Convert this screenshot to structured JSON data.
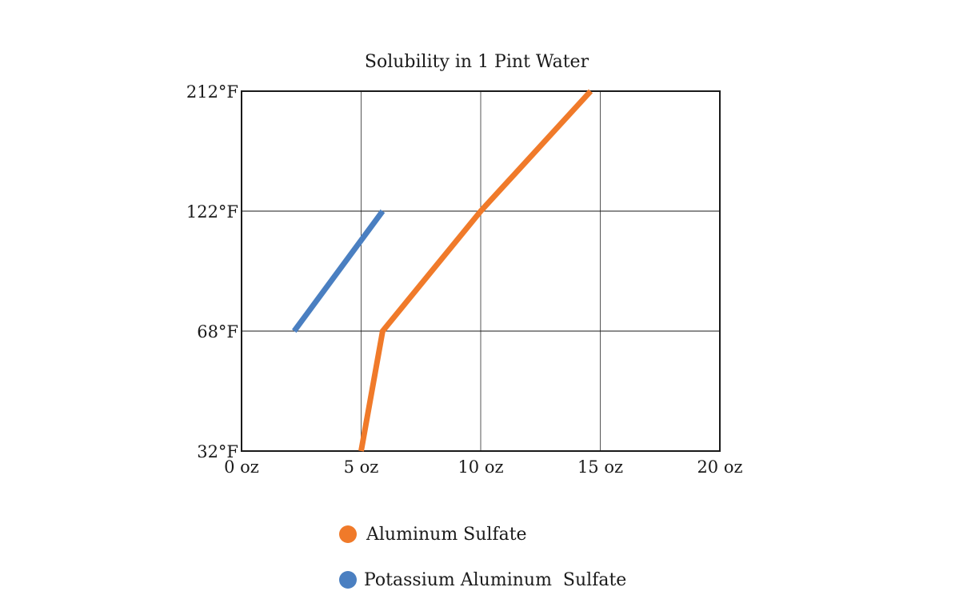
{
  "chart_data": {
    "type": "line",
    "title": "Solubility in 1 Pint Water",
    "xlabel": "",
    "ylabel": "",
    "xlim": [
      0,
      20
    ],
    "y_categories": [
      "32°F",
      "68°F",
      "122°F",
      "212°F"
    ],
    "x_ticks": [
      0,
      5,
      10,
      15,
      20
    ],
    "x_tick_labels": [
      "0 oz",
      "5 oz",
      "10 oz",
      "15 oz",
      "20 oz"
    ],
    "grid": true,
    "legend_position": "bottom",
    "series": [
      {
        "name": "Aluminum Sulfate",
        "color": "#f07a2a",
        "points": [
          {
            "x": 5.0,
            "y": "32°F"
          },
          {
            "x": 5.9,
            "y": "68°F"
          },
          {
            "x": 10.0,
            "y": "122°F"
          },
          {
            "x": 14.6,
            "y": "212°F"
          }
        ]
      },
      {
        "name": "Potassium Aluminum  Sulfate",
        "color": "#4a7fc1",
        "points": [
          {
            "x": 2.2,
            "y": "68°F"
          },
          {
            "x": 5.9,
            "y": "122°F"
          }
        ]
      }
    ]
  }
}
